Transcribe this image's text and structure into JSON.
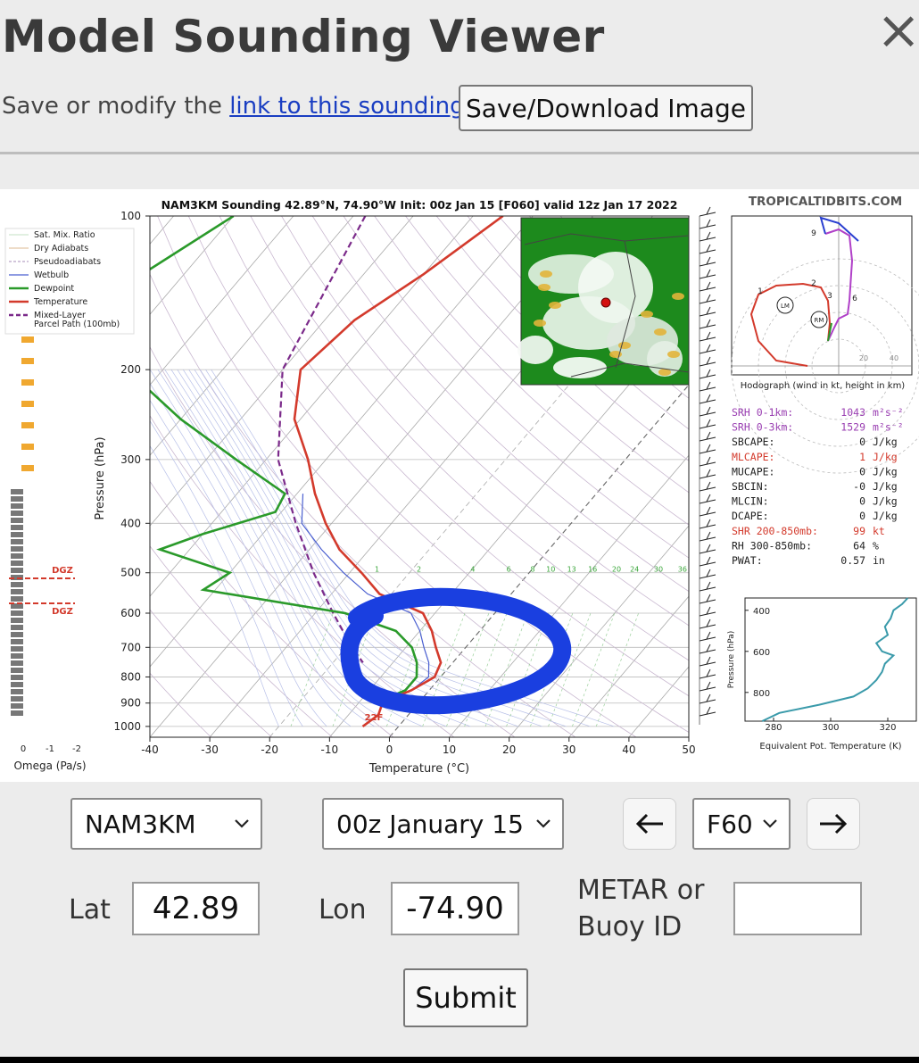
{
  "page": {
    "title": "Model Sounding Viewer",
    "close_glyph": "×",
    "link_prefix": "Save or modify the ",
    "link_text": "link to this sounding",
    "link_suffix": ".",
    "save_button": "Save/Download Image"
  },
  "sounding": {
    "header": "NAM3KM Sounding 42.89°N, 74.90°W Init: 00z Jan 15 [F060] valid 12z Jan 17 2022",
    "site": "TROPICALTIDBITS.COM",
    "legend": [
      "Sat. Mix. Ratio",
      "Dry Adiabats",
      "Pseudoadiabats",
      "Wetbulb",
      "Dewpoint",
      "Temperature",
      "Mixed-Layer",
      "Parcel Path (100mb)"
    ],
    "pressure_label": "Pressure (hPa)",
    "temperature_label": "Temperature (°C)",
    "pressure_ticks": [
      "100",
      "200",
      "300",
      "400",
      "500",
      "600",
      "700",
      "800",
      "900",
      "1000"
    ],
    "temperature_ticks": [
      "-40",
      "-30",
      "-20",
      "-10",
      "0",
      "10",
      "20",
      "30",
      "40",
      "50"
    ],
    "mixratio_ticks": [
      "1",
      "2",
      "4",
      "6",
      "8",
      "10",
      "13",
      "16",
      "20",
      "24",
      "30",
      "36"
    ],
    "omega_ticks": [
      "0",
      "-1",
      "-2"
    ],
    "omega_label": "Omega (Pa/s)",
    "dgz_label": "DGZ",
    "surface_temp_label": "22F",
    "hodograph_label": "Hodograph (wind in kt, height in km)",
    "hodograph_heights": [
      "1",
      "2",
      "3",
      "6",
      "9"
    ],
    "hodograph_ring_labels": [
      "20",
      "40"
    ],
    "storm_motion_labels": [
      "LM",
      "RM"
    ],
    "stats": [
      {
        "label": "SRH 0-1km:",
        "value": "1043",
        "unit": "m²s⁻²",
        "color": "#9a3fb2"
      },
      {
        "label": "SRH 0-3km:",
        "value": "1529",
        "unit": "m²s⁻²",
        "color": "#9a3fb2"
      },
      {
        "label": "SBCAPE:",
        "value": "0",
        "unit": "J/kg",
        "color": "#222222"
      },
      {
        "label": "MLCAPE:",
        "value": "1",
        "unit": "J/kg",
        "color": "#d33a2c"
      },
      {
        "label": "MUCAPE:",
        "value": "0",
        "unit": "J/kg",
        "color": "#222222"
      },
      {
        "label": "SBCIN:",
        "value": "-0",
        "unit": "J/kg",
        "color": "#222222"
      },
      {
        "label": "MLCIN:",
        "value": "0",
        "unit": "J/kg",
        "color": "#222222"
      },
      {
        "label": "DCAPE:",
        "value": "0",
        "unit": "J/kg",
        "color": "#222222"
      },
      {
        "label": "SHR 200-850mb:",
        "value": "99",
        "unit": "kt",
        "color": "#d33a2c"
      },
      {
        "label": "RH 300-850mb:",
        "value": "64",
        "unit": "%",
        "color": "#222222"
      },
      {
        "label": "PWAT:",
        "value": "0.57",
        "unit": "in",
        "color": "#222222"
      }
    ],
    "theta_pressure_ticks": [
      "400",
      "600",
      "800"
    ],
    "theta_x_ticks": [
      "280",
      "300",
      "320"
    ],
    "theta_ylabel": "Pressure (hPa)",
    "theta_xlabel": "Equivalent Pot. Temperature (K)",
    "colors": {
      "temperature": "#d33a2c",
      "dewpoint": "#2a9a2a",
      "wetbulb": "#4a5fd0",
      "parcel": "#7b2a8a",
      "annotation": "#1a3fe0",
      "theta": "#3a9aaa",
      "omega_positive": "#f0a830",
      "omega_negative": "#777777"
    }
  },
  "controls": {
    "model": "NAM3KM",
    "init": "00z January 15",
    "forecast_hour": "F60",
    "lat_label": "Lat",
    "lat_value": "42.89",
    "lon_label": "Lon",
    "lon_value": "-74.90",
    "metar_label_line1": "METAR or",
    "metar_label_line2": "Buoy ID",
    "metar_value": "",
    "submit": "Submit"
  }
}
